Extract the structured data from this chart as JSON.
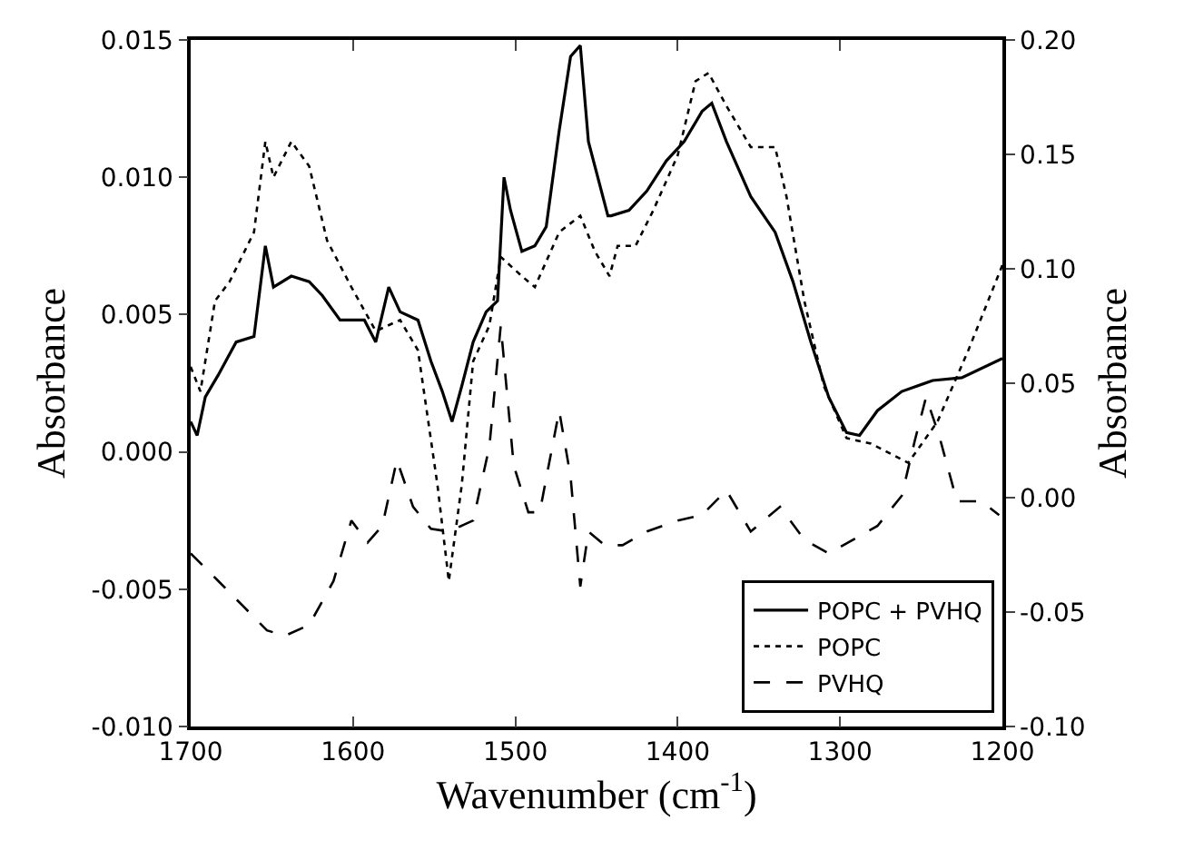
{
  "chart_data": {
    "type": "line",
    "xlabel": "Wavenumber (cm$^{-1}$)",
    "ylabel": "Absorbance",
    "y2label": "Absorbance",
    "xlim": [
      1700,
      1200
    ],
    "xticks": [
      1700,
      1600,
      1500,
      1400,
      1300,
      1200
    ],
    "ylim": [
      -0.01,
      0.015
    ],
    "yticks": [
      {
        "value": -0.01,
        "label": "-0.010"
      },
      {
        "value": -0.005,
        "label": "-0.005"
      },
      {
        "value": 0,
        "label": "0.000"
      },
      {
        "value": 0.005,
        "label": "0.005"
      },
      {
        "value": 0.01,
        "label": "0.010"
      },
      {
        "value": 0.015,
        "label": "0.015"
      }
    ],
    "y2lim": [
      -0.1,
      0.2
    ],
    "y2ticks": [
      {
        "value": -0.1,
        "label": "-0.10"
      },
      {
        "value": -0.05,
        "label": "-0.05"
      },
      {
        "value": 0,
        "label": "0.00"
      },
      {
        "value": 0.05,
        "label": "0.05"
      },
      {
        "value": 0.1,
        "label": "0.10"
      },
      {
        "value": 0.15,
        "label": "0.15"
      },
      {
        "value": 0.2,
        "label": "0.20"
      }
    ],
    "grid": false,
    "legend": "bottom right",
    "marker": "none",
    "series": [
      {
        "name": "POPC + PVHQ",
        "color": "#000000",
        "line_style": "solid",
        "x": [
          1700,
          1696,
          1691,
          1683,
          1672,
          1661,
          1654,
          1649,
          1638,
          1627,
          1619,
          1608,
          1593,
          1586,
          1578,
          1571,
          1560,
          1552,
          1545,
          1539,
          1533,
          1526,
          1518,
          1511,
          1507,
          1503,
          1496,
          1488,
          1481,
          1473,
          1466,
          1460,
          1455,
          1443,
          1441,
          1430,
          1419,
          1407,
          1396,
          1385,
          1379,
          1370,
          1355,
          1340,
          1329,
          1318,
          1307,
          1296,
          1288,
          1277,
          1262,
          1243,
          1225,
          1200
        ],
        "values": [
          0.0011,
          0.0006,
          0.002,
          0.0028,
          0.004,
          0.0042,
          0.0075,
          0.006,
          0.0064,
          0.0062,
          0.0057,
          0.0048,
          0.0048,
          0.004,
          0.006,
          0.0051,
          0.0048,
          0.0033,
          0.0022,
          0.0011,
          0.0024,
          0.004,
          0.0051,
          0.0055,
          0.01,
          0.0088,
          0.0073,
          0.0075,
          0.0082,
          0.0117,
          0.0144,
          0.0148,
          0.0113,
          0.0086,
          0.0086,
          0.0088,
          0.0095,
          0.0106,
          0.0113,
          0.0124,
          0.0127,
          0.0113,
          0.0093,
          0.008,
          0.0062,
          0.004,
          0.002,
          0.0007,
          0.0006,
          0.0015,
          0.0022,
          0.0026,
          0.0027,
          0.0034
        ]
      },
      {
        "name": "POPC",
        "color": "#000000",
        "line_style": "dotted",
        "x": [
          1700,
          1694,
          1685,
          1676,
          1661,
          1654,
          1649,
          1638,
          1627,
          1616,
          1601,
          1586,
          1571,
          1560,
          1548,
          1541,
          1533,
          1526,
          1516,
          1509,
          1496,
          1488,
          1473,
          1460,
          1451,
          1442,
          1437,
          1426,
          1415,
          1400,
          1389,
          1381,
          1370,
          1355,
          1340,
          1333,
          1322,
          1310,
          1296,
          1281,
          1258,
          1240,
          1221,
          1200
        ],
        "values": [
          0.0031,
          0.0022,
          0.0055,
          0.0062,
          0.008,
          0.0113,
          0.01,
          0.0113,
          0.0104,
          0.0077,
          0.006,
          0.0044,
          0.0048,
          0.0037,
          -0.0012,
          -0.0047,
          -0.0012,
          0.0033,
          0.0046,
          0.0071,
          0.0064,
          0.006,
          0.008,
          0.0086,
          0.0073,
          0.0064,
          0.0075,
          0.0075,
          0.0088,
          0.0108,
          0.0135,
          0.0138,
          0.0126,
          0.0111,
          0.0111,
          0.0093,
          0.0055,
          0.0024,
          0.0005,
          0.0003,
          -0.0004,
          0.0011,
          0.0037,
          0.0068
        ]
      },
      {
        "name": "PVHQ",
        "color": "#000000",
        "line_style": "dashed",
        "x": [
          1700,
          1683,
          1668,
          1653,
          1642,
          1627,
          1612,
          1601,
          1591,
          1582,
          1573,
          1563,
          1552,
          1541,
          1526,
          1516,
          1509,
          1501,
          1492,
          1485,
          1473,
          1466,
          1460,
          1455,
          1445,
          1434,
          1419,
          1400,
          1385,
          1370,
          1355,
          1337,
          1322,
          1307,
          1292,
          1277,
          1262,
          1254,
          1247,
          1239,
          1228,
          1213,
          1202
        ],
        "values": [
          -0.0037,
          -0.0047,
          -0.0056,
          -0.0065,
          -0.0067,
          -0.0063,
          -0.0047,
          -0.0025,
          -0.0033,
          -0.0027,
          -0.0003,
          -0.002,
          -0.0028,
          -0.0029,
          -0.0025,
          0.0002,
          0.0046,
          -0.0005,
          -0.0022,
          -0.0022,
          0.0015,
          -0.0009,
          -0.0049,
          -0.0029,
          -0.0034,
          -0.0034,
          -0.0029,
          -0.0025,
          -0.0023,
          -0.0014,
          -0.0029,
          -0.002,
          -0.0032,
          -0.0037,
          -0.0032,
          -0.0027,
          -0.0016,
          0.0004,
          0.002,
          0.0006,
          -0.0018,
          -0.0018,
          -0.0023
        ]
      }
    ]
  }
}
